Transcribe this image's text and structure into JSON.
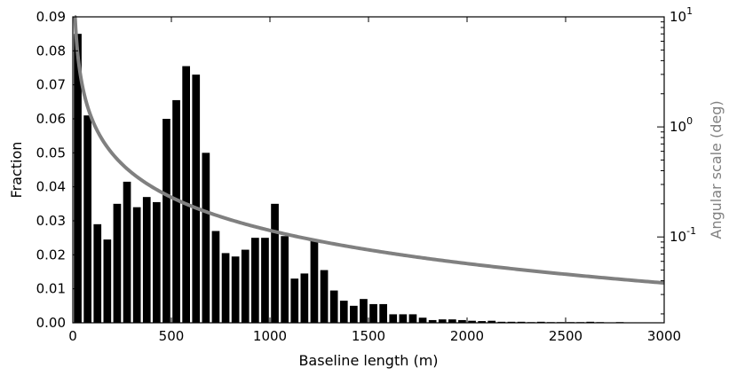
{
  "chart_data": {
    "type": "bar",
    "title": "",
    "xlabel": "Baseline length (m)",
    "ylabel": "Fraction",
    "y2label": "Angular scale (deg)",
    "xlim": [
      0,
      3000
    ],
    "ylim": [
      0,
      0.09
    ],
    "y2lim_log10": [
      -1.78,
      1
    ],
    "y2scale": "log",
    "grid": false,
    "legend": "none",
    "bar_width": 50,
    "x": [
      25,
      75,
      125,
      175,
      225,
      275,
      325,
      375,
      425,
      475,
      525,
      575,
      625,
      675,
      725,
      775,
      825,
      875,
      925,
      975,
      1025,
      1075,
      1125,
      1175,
      1225,
      1275,
      1325,
      1375,
      1425,
      1475,
      1525,
      1575,
      1625,
      1675,
      1725,
      1775,
      1825,
      1875,
      1925,
      1975,
      2025,
      2075,
      2125,
      2175,
      2225,
      2275,
      2325,
      2375,
      2425,
      2475,
      2525,
      2575,
      2625,
      2675,
      2725,
      2775,
      2825,
      2875,
      2925,
      2975
    ],
    "values": [
      0.085,
      0.061,
      0.029,
      0.0245,
      0.035,
      0.0415,
      0.034,
      0.037,
      0.0355,
      0.06,
      0.0655,
      0.0755,
      0.073,
      0.05,
      0.027,
      0.0205,
      0.0195,
      0.0215,
      0.025,
      0.025,
      0.035,
      0.0255,
      0.013,
      0.0145,
      0.0245,
      0.0155,
      0.0095,
      0.0065,
      0.005,
      0.007,
      0.0055,
      0.0055,
      0.0025,
      0.0025,
      0.0025,
      0.0015,
      0.0008,
      0.001,
      0.001,
      0.0008,
      0.0006,
      0.0005,
      0.0006,
      0.0003,
      0.0003,
      0.0003,
      0.0002,
      0.0003,
      0.0002,
      0.0002,
      0.0002,
      0.0002,
      0.0003,
      0.0002,
      0.0001,
      0.0002,
      0.0001,
      0.0001,
      0.0001,
      0.0001
    ],
    "bar_color": "#000000",
    "curve": {
      "formula": "angular_scale_deg = 180/pi * lambda / baseline",
      "lambda_m": 2,
      "x_range": [
        10,
        3000
      ],
      "color": "#808080"
    },
    "x_ticks": [
      0,
      500,
      1000,
      1500,
      2000,
      2500,
      3000
    ],
    "x_tick_labels": [
      "0",
      "500",
      "1000",
      "1500",
      "2000",
      "2500",
      "3000"
    ],
    "y_ticks": [
      0.0,
      0.01,
      0.02,
      0.03,
      0.04,
      0.05,
      0.06,
      0.07,
      0.08,
      0.09
    ],
    "y_tick_labels": [
      "0.00",
      "0.01",
      "0.02",
      "0.03",
      "0.04",
      "0.05",
      "0.06",
      "0.07",
      "0.08",
      "0.09"
    ],
    "y2_ticks": [
      1,
      0,
      -1
    ],
    "y2_tick_base": "10",
    "y2_tick_exponents": [
      "1",
      "0",
      "-1"
    ],
    "axis_color": "#000000",
    "y2label_color": "#808080"
  }
}
